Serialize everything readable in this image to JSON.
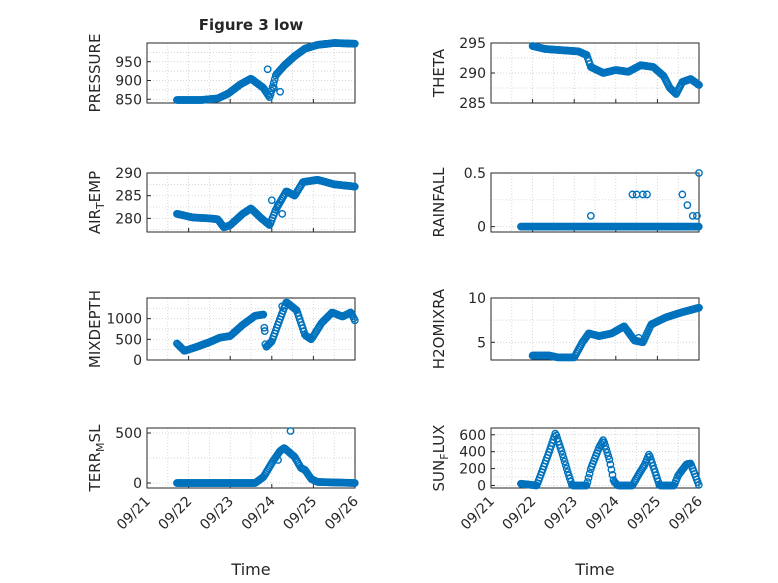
{
  "figure_title": "Figure 3 low",
  "chart_data": [
    {
      "type": "scatter",
      "ylabel": "PRESSURE",
      "title": "Figure 3 low",
      "xlim": [
        0,
        5
      ],
      "ylim": [
        840,
        1000
      ],
      "yticks": [
        850,
        900,
        950
      ],
      "keys": [
        [
          0.72,
          848
        ],
        [
          1.3,
          848
        ],
        [
          1.7,
          852
        ],
        [
          1.95,
          865
        ],
        [
          2.25,
          890
        ],
        [
          2.5,
          905
        ],
        [
          2.8,
          880
        ],
        [
          2.95,
          855
        ],
        [
          3.1,
          915
        ],
        [
          3.3,
          940
        ],
        [
          3.55,
          965
        ],
        [
          3.8,
          985
        ],
        [
          4.1,
          995
        ],
        [
          4.5,
          1000
        ],
        [
          5.0,
          998
        ]
      ],
      "extras": [
        [
          2.9,
          930
        ],
        [
          3.05,
          880
        ],
        [
          3.2,
          870
        ]
      ]
    },
    {
      "type": "scatter",
      "ylabel": "THETA",
      "xlim": [
        0,
        5
      ],
      "ylim": [
        285,
        295
      ],
      "yticks": [
        285,
        290,
        295
      ],
      "keys": [
        [
          1.0,
          294.5
        ],
        [
          1.3,
          294
        ],
        [
          1.7,
          293.8
        ],
        [
          2.1,
          293.6
        ],
        [
          2.3,
          293
        ],
        [
          2.4,
          291
        ],
        [
          2.7,
          290
        ],
        [
          3.0,
          290.5
        ],
        [
          3.3,
          290.2
        ],
        [
          3.6,
          291.3
        ],
        [
          3.9,
          291
        ],
        [
          4.15,
          289.5
        ],
        [
          4.3,
          287.5
        ],
        [
          4.45,
          286.5
        ],
        [
          4.6,
          288.5
        ],
        [
          4.8,
          289
        ],
        [
          5.0,
          288
        ]
      ],
      "extras": []
    },
    {
      "type": "scatter",
      "ylabel": "AIR_TEMP",
      "xlim": [
        0,
        5
      ],
      "ylim": [
        277,
        290
      ],
      "yticks": [
        280,
        285,
        290
      ],
      "keys": [
        [
          0.72,
          281
        ],
        [
          1.1,
          280.2
        ],
        [
          1.5,
          280
        ],
        [
          1.7,
          279.8
        ],
        [
          1.85,
          278
        ],
        [
          2.0,
          278.5
        ],
        [
          2.3,
          281
        ],
        [
          2.5,
          282.2
        ],
        [
          2.75,
          280
        ],
        [
          2.95,
          278.5
        ],
        [
          3.1,
          282
        ],
        [
          3.35,
          286
        ],
        [
          3.55,
          285
        ],
        [
          3.75,
          288
        ],
        [
          4.1,
          288.5
        ],
        [
          4.5,
          287.5
        ],
        [
          5.0,
          287
        ]
      ],
      "extras": [
        [
          3.0,
          284
        ],
        [
          3.15,
          283
        ],
        [
          3.25,
          281
        ]
      ]
    },
    {
      "type": "scatter",
      "ylabel": "RAINFALL",
      "xlim": [
        0,
        5
      ],
      "ylim": [
        -0.05,
        0.5
      ],
      "yticks": [
        0,
        0.5
      ],
      "keys": [
        [
          0.72,
          0
        ],
        [
          5.0,
          0
        ]
      ],
      "extras": [
        [
          2.4,
          0.1
        ],
        [
          3.4,
          0.3
        ],
        [
          3.5,
          0.3
        ],
        [
          3.65,
          0.3
        ],
        [
          3.75,
          0.3
        ],
        [
          4.6,
          0.3
        ],
        [
          4.72,
          0.2
        ],
        [
          4.85,
          0.1
        ],
        [
          4.95,
          0.1
        ],
        [
          5.0,
          0.5
        ]
      ]
    },
    {
      "type": "scatter",
      "ylabel": "MIXDEPTH",
      "xlim": [
        0,
        5
      ],
      "ylim": [
        0,
        1500
      ],
      "yticks": [
        0,
        500,
        1000
      ],
      "keys": [
        [
          0.72,
          400
        ],
        [
          0.9,
          220
        ],
        [
          1.2,
          320
        ],
        [
          1.5,
          430
        ],
        [
          1.75,
          540
        ],
        [
          2.0,
          580
        ],
        [
          2.3,
          850
        ],
        [
          2.6,
          1070
        ],
        [
          2.8,
          1100
        ],
        [
          2.85,
          300
        ],
        [
          3.0,
          450
        ],
        [
          3.2,
          1000
        ],
        [
          3.35,
          1400
        ],
        [
          3.6,
          1200
        ],
        [
          3.8,
          600
        ],
        [
          3.95,
          500
        ],
        [
          4.2,
          900
        ],
        [
          4.45,
          1150
        ],
        [
          4.7,
          1050
        ],
        [
          4.9,
          1150
        ],
        [
          5.0,
          950
        ]
      ],
      "extras": [
        [
          2.83,
          700
        ],
        [
          3.25,
          1300
        ]
      ]
    },
    {
      "type": "scatter",
      "ylabel": "H2OMIXRA",
      "xlim": [
        0,
        5
      ],
      "ylim": [
        3,
        10
      ],
      "yticks": [
        5,
        10
      ],
      "keys": [
        [
          1.0,
          3.5
        ],
        [
          1.4,
          3.5
        ],
        [
          1.6,
          3.3
        ],
        [
          2.0,
          3.3
        ],
        [
          2.2,
          5
        ],
        [
          2.35,
          6
        ],
        [
          2.6,
          5.7
        ],
        [
          2.9,
          6
        ],
        [
          3.2,
          6.8
        ],
        [
          3.45,
          5.2
        ],
        [
          3.65,
          5
        ],
        [
          3.85,
          7
        ],
        [
          4.2,
          7.8
        ],
        [
          4.6,
          8.4
        ],
        [
          5.0,
          8.9
        ]
      ],
      "extras": [
        [
          3.3,
          6.2
        ],
        [
          3.55,
          5.5
        ]
      ]
    },
    {
      "type": "scatter",
      "ylabel": "TERR_MSL",
      "xlim": [
        0,
        5
      ],
      "ylim": [
        -50,
        550
      ],
      "yticks": [
        0,
        500
      ],
      "keys": [
        [
          0.72,
          0
        ],
        [
          2.5,
          0
        ],
        [
          2.6,
          0
        ],
        [
          2.8,
          60
        ],
        [
          3.0,
          200
        ],
        [
          3.2,
          320
        ],
        [
          3.3,
          350
        ],
        [
          3.55,
          260
        ],
        [
          3.7,
          150
        ],
        [
          3.8,
          130
        ],
        [
          3.95,
          40
        ],
        [
          4.1,
          10
        ],
        [
          5.0,
          0
        ]
      ],
      "extras": [
        [
          3.15,
          230
        ],
        [
          3.45,
          520
        ]
      ]
    },
    {
      "type": "scatter",
      "ylabel": "SUN_FLUX",
      "xlim": [
        0,
        5
      ],
      "ylim": [
        -30,
        680
      ],
      "yticks": [
        0,
        200,
        400,
        600
      ],
      "keys": [
        [
          0.72,
          20
        ],
        [
          1.1,
          0
        ],
        [
          1.2,
          130
        ],
        [
          1.4,
          400
        ],
        [
          1.55,
          620
        ],
        [
          1.7,
          400
        ],
        [
          1.85,
          150
        ],
        [
          1.95,
          0
        ],
        [
          2.3,
          0
        ],
        [
          2.4,
          200
        ],
        [
          2.6,
          450
        ],
        [
          2.7,
          540
        ],
        [
          2.85,
          300
        ],
        [
          2.95,
          50
        ],
        [
          3.05,
          0
        ],
        [
          3.4,
          0
        ],
        [
          3.55,
          130
        ],
        [
          3.7,
          250
        ],
        [
          3.8,
          370
        ],
        [
          3.95,
          150
        ],
        [
          4.05,
          0
        ],
        [
          4.4,
          0
        ],
        [
          4.5,
          120
        ],
        [
          4.7,
          250
        ],
        [
          4.8,
          260
        ],
        [
          5.0,
          0
        ]
      ],
      "extras": []
    }
  ],
  "x_axis": {
    "label": "Time",
    "ticks": [
      "09/21",
      "09/22",
      "09/23",
      "09/24",
      "09/25",
      "09/26"
    ]
  }
}
